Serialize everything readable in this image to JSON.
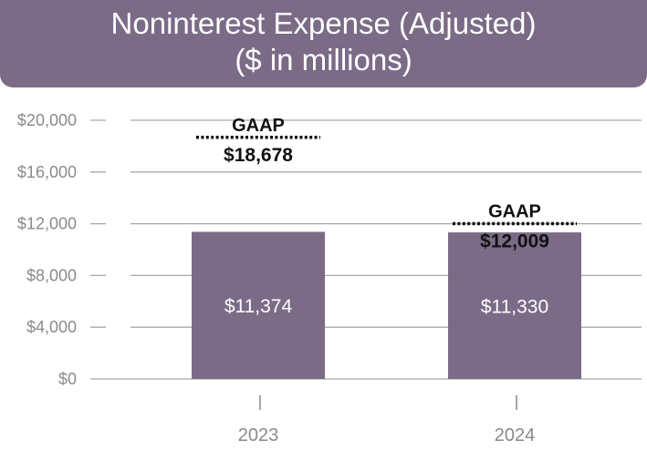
{
  "chart_data": {
    "type": "bar",
    "title": "Noninterest Expense (Adjusted)",
    "subtitle": "($ in millions)",
    "categories": [
      "2023",
      "2024"
    ],
    "values": [
      11374,
      11330
    ],
    "value_labels": [
      "$11,374",
      "$11,330"
    ],
    "gaap_label": "GAAP",
    "gaap_values": [
      18678,
      12009
    ],
    "gaap_value_labels": [
      "$18,678",
      "$12,009"
    ],
    "y_ticks": [
      0,
      4000,
      8000,
      12000,
      16000,
      20000
    ],
    "y_tick_labels": [
      "$0",
      "$4,000",
      "$8,000",
      "$12,000",
      "$16,000",
      "$20,000"
    ],
    "ylim": [
      0,
      20000
    ],
    "xlabel": "",
    "ylabel": "",
    "grid": true
  },
  "colors": {
    "bar": "#7b6b87",
    "banner": "#7b6b87",
    "grid": "#a8a8a8",
    "tick_text": "#8a8a8a",
    "annotation": "#111111"
  }
}
